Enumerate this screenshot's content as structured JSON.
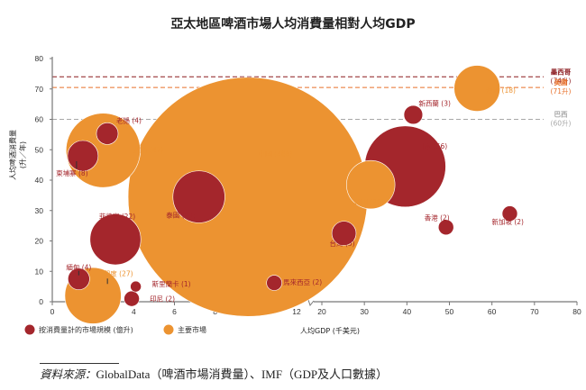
{
  "chart_data": {
    "type": "scatter",
    "subtype": "bubble",
    "title": "亞太地區啤酒市場人均消費量相對人均GDP",
    "xlabel": "人均GDP (千美元)",
    "ylabel": "人均啤酒消費量",
    "ylabel_unit": "(升／年)",
    "xlim_segments": [
      [
        0,
        12
      ],
      [
        20,
        80
      ]
    ],
    "x_axis_break": true,
    "ylim": [
      0,
      80
    ],
    "x_ticks": [
      0,
      2,
      4,
      6,
      8,
      10,
      12,
      20,
      30,
      40,
      50,
      60,
      70,
      80
    ],
    "y_ticks": [
      0,
      10,
      20,
      30,
      40,
      50,
      60,
      70,
      80
    ],
    "grid": false,
    "legend_position": "bottom-left",
    "legend": [
      {
        "key": "market",
        "label": "按消費量計的市場規模 (億升)",
        "color": "#a4262c"
      },
      {
        "key": "major",
        "label": "主要市場",
        "color": "#ec9331"
      }
    ],
    "reference_lines": [
      {
        "name": "墨西哥",
        "value_label": "(74升)",
        "y": 74,
        "color": "#8b1a1f"
      },
      {
        "name": "美國",
        "value_label": "(71升)",
        "y": 70.5,
        "color": "#e8702a"
      },
      {
        "name": "巴西",
        "value_label": "(60升)",
        "y": 60,
        "color": "#a8a8a8"
      }
    ],
    "series": [
      {
        "name": "按消費量計的市場規模 (億升)",
        "color": "#a4262c",
        "points": [
          {
            "label": "老撾",
            "size": 4,
            "x": 2.7,
            "y": 55.3
          },
          {
            "label": "柬埔寨",
            "size": 8,
            "x": 1.5,
            "y": 48
          },
          {
            "label": "泰國",
            "size": 23,
            "x": 7.2,
            "y": 34.5
          },
          {
            "label": "菲律賓",
            "size": 22,
            "x": 3.1,
            "y": 20.5
          },
          {
            "label": "緬甸",
            "size": 4,
            "x": 1.3,
            "y": 7.5
          },
          {
            "label": "斯里蘭卡",
            "size": 1,
            "x": 4.1,
            "y": 5
          },
          {
            "label": "印尼",
            "size": 2,
            "x": 3.9,
            "y": 1
          },
          {
            "label": "馬來西亞",
            "size": 2,
            "x": 10.9,
            "y": 6.2
          },
          {
            "label": "台灣",
            "size": 5,
            "x": 25.2,
            "y": 22.5
          },
          {
            "label": "新西蘭",
            "size": 3,
            "x": 41.5,
            "y": 61.5
          },
          {
            "label": "日本",
            "size": 56,
            "x": 39.6,
            "y": 44.5
          },
          {
            "label": "香港",
            "size": 2,
            "x": 49.2,
            "y": 24.5
          },
          {
            "label": "新加坡",
            "size": 2,
            "x": 64.2,
            "y": 29
          }
        ]
      },
      {
        "name": "主要市場",
        "color": "#ec9331",
        "points": [
          {
            "label": "越南",
            "size": 47,
            "x": 2.5,
            "y": 49.8
          },
          {
            "label": "印度",
            "size": 27,
            "x": 2.0,
            "y": 2
          },
          {
            "label": "中國",
            "size": 488,
            "x": 9.6,
            "y": 34.5
          },
          {
            "label": "韓國",
            "size": 20,
            "x": 31.5,
            "y": 38.5
          },
          {
            "label": "澳洲",
            "size": 18,
            "x": 56.5,
            "y": 70.2
          }
        ]
      }
    ]
  },
  "source": {
    "prefix": "資料來源：",
    "text": "GlobalData（啤酒市場消費量）、IMF（GDP及人口數據）"
  }
}
